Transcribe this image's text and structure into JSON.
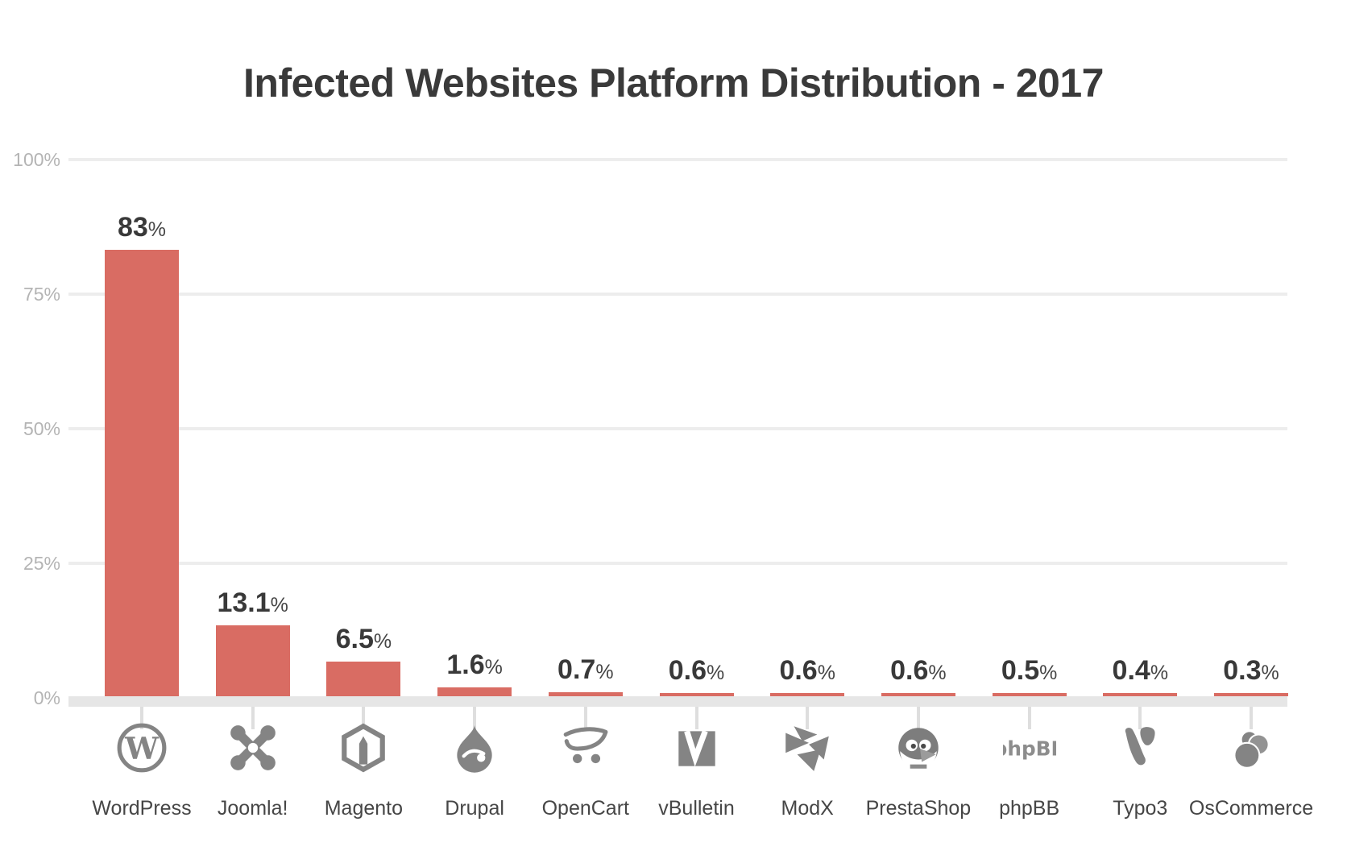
{
  "title": "Infected Websites Platform Distribution - 2017",
  "colors": {
    "bar": "#d96c63",
    "gridline": "#ededed",
    "baseline": "#e6e6e6",
    "axis_text": "#b4b4b4",
    "value_text": "#393939",
    "category_text": "#464646",
    "icon": "#848484",
    "background": "#ffffff"
  },
  "y_axis": {
    "ticks": [
      "100%",
      "75%",
      "50%",
      "25%",
      "0%"
    ],
    "tick_values": [
      100,
      75,
      50,
      25,
      0
    ]
  },
  "chart_data": {
    "type": "bar",
    "title": "Infected Websites Platform Distribution - 2017",
    "categories": [
      "WordPress",
      "Joomla!",
      "Magento",
      "Drupal",
      "OpenCart",
      "vBulletin",
      "ModX",
      "PrestaShop",
      "phpBB",
      "Typo3",
      "OsCommerce"
    ],
    "values": [
      83,
      13.1,
      6.5,
      1.6,
      0.7,
      0.6,
      0.6,
      0.6,
      0.5,
      0.4,
      0.3
    ],
    "value_labels": [
      "83",
      "13.1",
      "6.5",
      "1.6",
      "0.7",
      "0.6",
      "0.6",
      "0.6",
      "0.5",
      "0.4",
      "0.3"
    ],
    "value_suffix": "%",
    "icons": [
      "wordpress-icon",
      "joomla-icon",
      "magento-icon",
      "drupal-icon",
      "opencart-icon",
      "vbulletin-icon",
      "modx-icon",
      "prestashop-icon",
      "phpbb-icon",
      "typo3-icon",
      "oscommerce-icon"
    ],
    "xlabel": "",
    "ylabel": "",
    "ylim": [
      0,
      100
    ],
    "grid": true,
    "legend": "none",
    "bar_color": "#d96c63"
  }
}
